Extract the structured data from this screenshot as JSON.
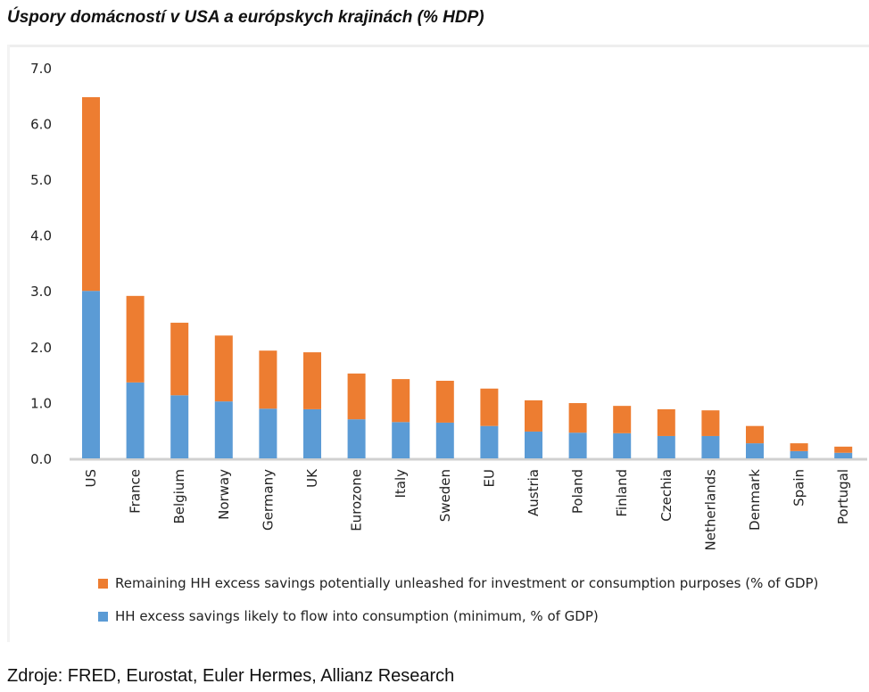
{
  "title": "Úspory domácností v USA a európskych krajinách (% HDP)",
  "source": "Zdroje: FRED, Eurostat, Euler Hermes, Allianz Research",
  "chart_data": {
    "type": "bar",
    "stacked": true,
    "title": "Úspory domácností v USA a európskych krajinách (% HDP)",
    "xlabel": "",
    "ylabel": "",
    "ylim": [
      0,
      7
    ],
    "yticks": [
      "0.0",
      "1.0",
      "2.0",
      "3.0",
      "4.0",
      "5.0",
      "6.0",
      "7.0"
    ],
    "grid": false,
    "legend_position": "bottom",
    "categories": [
      "US",
      "France",
      "Belgium",
      "Norway",
      "Germany",
      "UK",
      "Eurozone",
      "Italy",
      "Sweden",
      "EU",
      "Austria",
      "Poland",
      "Finland",
      "Czechia",
      "Netherlands",
      "Denmark",
      "Spain",
      "Portugal"
    ],
    "series": [
      {
        "name": "HH excess savings likely to flow into consumption (minimum, % of GDP)",
        "color": "#5b9bd5",
        "values": [
          3.0,
          1.36,
          1.13,
          1.02,
          0.89,
          0.88,
          0.7,
          0.65,
          0.64,
          0.58,
          0.48,
          0.46,
          0.45,
          0.4,
          0.4,
          0.27,
          0.13,
          0.1
        ]
      },
      {
        "name": "Remaining HH excess savings potentially unleashed for investment or consumption purposes (% of GDP)",
        "color": "#ed7d31",
        "values": [
          3.47,
          1.55,
          1.3,
          1.18,
          1.04,
          1.02,
          0.82,
          0.77,
          0.75,
          0.67,
          0.56,
          0.53,
          0.49,
          0.48,
          0.46,
          0.31,
          0.14,
          0.11
        ]
      }
    ]
  }
}
